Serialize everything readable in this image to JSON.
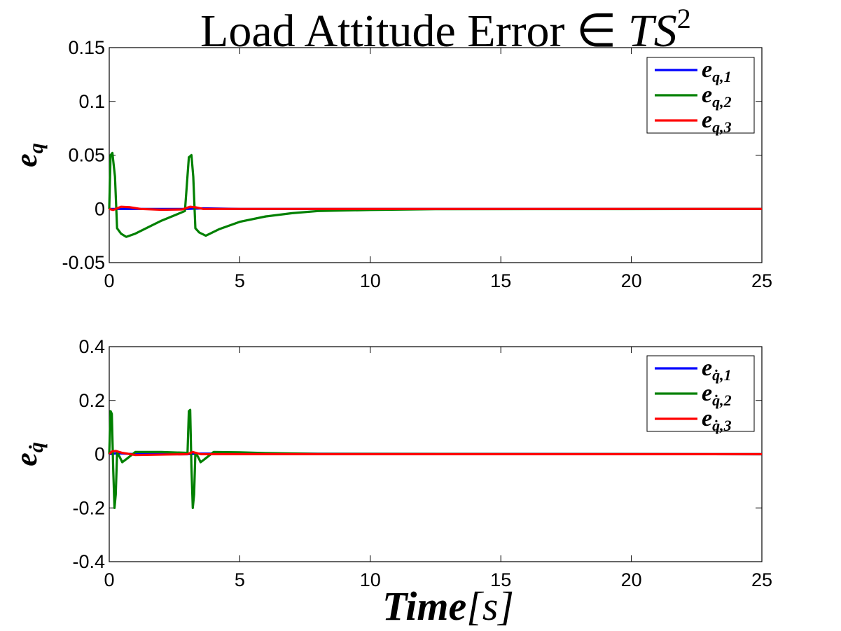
{
  "chart_data": [
    {
      "type": "line",
      "title": "Load Attitude Error ∈ TS²",
      "title_parts": {
        "main": "Load Attitude Error ∈ ",
        "var": "TS",
        "sup": "2"
      },
      "ylabel": "e_q",
      "ylabel_parts": {
        "base": "e",
        "sub": "q"
      },
      "xlabel": "",
      "xlim": [
        0,
        25
      ],
      "ylim": [
        -0.05,
        0.15
      ],
      "x_ticks": [
        "0",
        "5",
        "10",
        "15",
        "20",
        "25"
      ],
      "y_ticks": [
        "-0.05",
        "0",
        "0.05",
        "0.1",
        "0.15"
      ],
      "grid": false,
      "legend_position": "top-right",
      "series": [
        {
          "name": "e_{q,1}",
          "label_base": "e",
          "label_sub": "q,1",
          "color": "#0000ff",
          "x": [
            0,
            0.3,
            0.8,
            1.5,
            3.0,
            3.6,
            5,
            25
          ],
          "y": [
            0,
            0,
            0,
            0,
            0,
            0.0005,
            0,
            0
          ]
        },
        {
          "name": "e_{q,2}",
          "label_base": "e",
          "label_sub": "q,2",
          "color": "#008000",
          "x": [
            0,
            0.05,
            0.12,
            0.22,
            0.3,
            0.45,
            0.65,
            1.0,
            1.5,
            2.0,
            2.5,
            2.9,
            3.05,
            3.15,
            3.22,
            3.3,
            3.45,
            3.7,
            4.2,
            5,
            6,
            7,
            8,
            10,
            12.5,
            25
          ],
          "y": [
            0,
            0.05,
            0.052,
            0.03,
            -0.018,
            -0.023,
            -0.026,
            -0.023,
            -0.017,
            -0.011,
            -0.006,
            -0.002,
            0.048,
            0.05,
            0.03,
            -0.018,
            -0.022,
            -0.025,
            -0.019,
            -0.012,
            -0.007,
            -0.004,
            -0.002,
            -0.001,
            -0.0003,
            0
          ]
        },
        {
          "name": "e_{q,3}",
          "label_base": "e",
          "label_sub": "q,3",
          "color": "#ff0000",
          "x": [
            0,
            0.15,
            0.45,
            0.8,
            1.2,
            2.0,
            2.8,
            3.1,
            3.3,
            3.6,
            4.5,
            25
          ],
          "y": [
            0,
            -0.001,
            0.002,
            0.0015,
            0,
            -0.0008,
            -0.0005,
            0.002,
            0.0015,
            0,
            0,
            0
          ]
        }
      ]
    },
    {
      "type": "line",
      "title": "",
      "ylabel": "e_q̇",
      "ylabel_parts": {
        "base": "e",
        "sub": "q̇"
      },
      "xlabel": "Time[s]",
      "xlabel_parts": {
        "var": "Time",
        "unit": "[s]"
      },
      "xlim": [
        0,
        25
      ],
      "ylim": [
        -0.4,
        0.4
      ],
      "x_ticks": [
        "0",
        "5",
        "10",
        "15",
        "20",
        "25"
      ],
      "y_ticks": [
        "-0.4",
        "-0.2",
        "0",
        "0.2",
        "0.4"
      ],
      "grid": false,
      "legend_position": "top-right",
      "series": [
        {
          "name": "e_{q̇,1}",
          "label_base": "e",
          "label_sub": "q̇,1",
          "color": "#0000ff",
          "x": [
            0,
            0.3,
            1,
            3,
            3.5,
            25
          ],
          "y": [
            0,
            0.003,
            0,
            0,
            0.002,
            0
          ]
        },
        {
          "name": "e_{q̇,2}",
          "label_base": "e",
          "label_sub": "q̇,2",
          "color": "#008000",
          "x": [
            0,
            0.05,
            0.1,
            0.15,
            0.2,
            0.25,
            0.3,
            0.4,
            0.5,
            0.7,
            1.0,
            2.0,
            3.0,
            3.05,
            3.1,
            3.15,
            3.2,
            3.25,
            3.3,
            3.4,
            3.5,
            3.7,
            4.0,
            5.0,
            6.0,
            8.0,
            25
          ],
          "y": [
            0,
            0.16,
            0.15,
            -0.05,
            -0.2,
            -0.15,
            0.005,
            -0.01,
            -0.03,
            -0.015,
            0.008,
            0.008,
            0.005,
            0.16,
            0.165,
            -0.05,
            -0.2,
            -0.15,
            0.005,
            -0.01,
            -0.03,
            -0.015,
            0.008,
            0.007,
            0.004,
            0.001,
            0
          ]
        },
        {
          "name": "e_{q̇,3}",
          "label_base": "e",
          "label_sub": "q̇,3",
          "color": "#ff0000",
          "x": [
            0,
            0.1,
            0.25,
            0.5,
            1.0,
            3.0,
            3.2,
            3.5,
            25
          ],
          "y": [
            0,
            0.01,
            0.012,
            0.005,
            -0.003,
            0,
            0.008,
            0,
            0
          ]
        }
      ]
    }
  ]
}
